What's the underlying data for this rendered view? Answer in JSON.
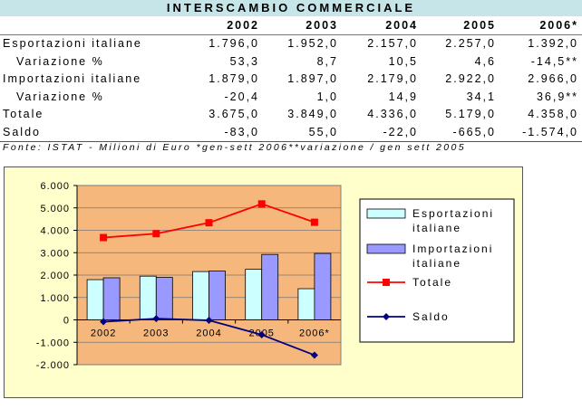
{
  "title": "INTERSCAMBIO COMMERCIALE",
  "table": {
    "years": [
      "2002",
      "2003",
      "2004",
      "2005",
      "2006*"
    ],
    "rows": [
      {
        "label": "Esportazioni italiane",
        "indent": false,
        "values": [
          "1.796,0",
          "1.952,0",
          "2.157,0",
          "2.257,0",
          "1.392,0"
        ]
      },
      {
        "label": "Variazione %",
        "indent": true,
        "values": [
          "53,3",
          "8,7",
          "10,5",
          "4,6",
          "-14,5**"
        ]
      },
      {
        "label": "Importazioni italiane",
        "indent": false,
        "values": [
          "1.879,0",
          "1.897,0",
          "2.179,0",
          "2.922,0",
          "2.966,0"
        ]
      },
      {
        "label": "Variazione %",
        "indent": true,
        "values": [
          "-20,4",
          "1,0",
          "14,9",
          "34,1",
          "36,9**"
        ]
      },
      {
        "label": "Totale",
        "indent": false,
        "values": [
          "3.675,0",
          "3.849,0",
          "4.336,0",
          "5.179,0",
          "4.358,0"
        ]
      },
      {
        "label": "Saldo",
        "indent": false,
        "values": [
          "-83,0",
          "55,0",
          "-22,0",
          "-665,0",
          "-1.574,0"
        ]
      }
    ]
  },
  "source": "Fonte: ISTAT - Milioni di Euro *gen-sett 2006**variazione / gen sett 2005",
  "colors": {
    "title_bg": "#c5e5e9",
    "chart_bg": "#ffffcc",
    "plot_bg": "#f5b77c",
    "esportazioni": "#ccffff",
    "importazioni": "#9999ff",
    "totale": "#ff0000",
    "saldo": "#000080"
  },
  "chart_data": {
    "type": "bar",
    "categories": [
      "2002",
      "2003",
      "2004",
      "2005",
      "2006*"
    ],
    "series": [
      {
        "name": "Esportazioni italiane",
        "type": "bar",
        "values": [
          1796,
          1952,
          2157,
          2257,
          1392
        ]
      },
      {
        "name": "Importazioni italiane",
        "type": "bar",
        "values": [
          1879,
          1897,
          2179,
          2922,
          2966
        ]
      },
      {
        "name": "Totale",
        "type": "line",
        "values": [
          3675,
          3849,
          4336,
          5179,
          4358
        ]
      },
      {
        "name": "Saldo",
        "type": "line",
        "values": [
          -83,
          55,
          -22,
          -665,
          -1574
        ]
      }
    ],
    "ylim": [
      -2000,
      6000
    ],
    "yticks": [
      -2000,
      -1000,
      0,
      1000,
      2000,
      3000,
      4000,
      5000,
      6000
    ],
    "ytick_labels": [
      "-2.000",
      "-1.000",
      "0",
      "1.000",
      "2.000",
      "3.000",
      "4.000",
      "5.000",
      "6.000"
    ],
    "grid": true,
    "legend_position": "right",
    "legend": [
      "Esportazioni italiane",
      "Importazioni italiane",
      "Totale",
      "Saldo"
    ]
  }
}
